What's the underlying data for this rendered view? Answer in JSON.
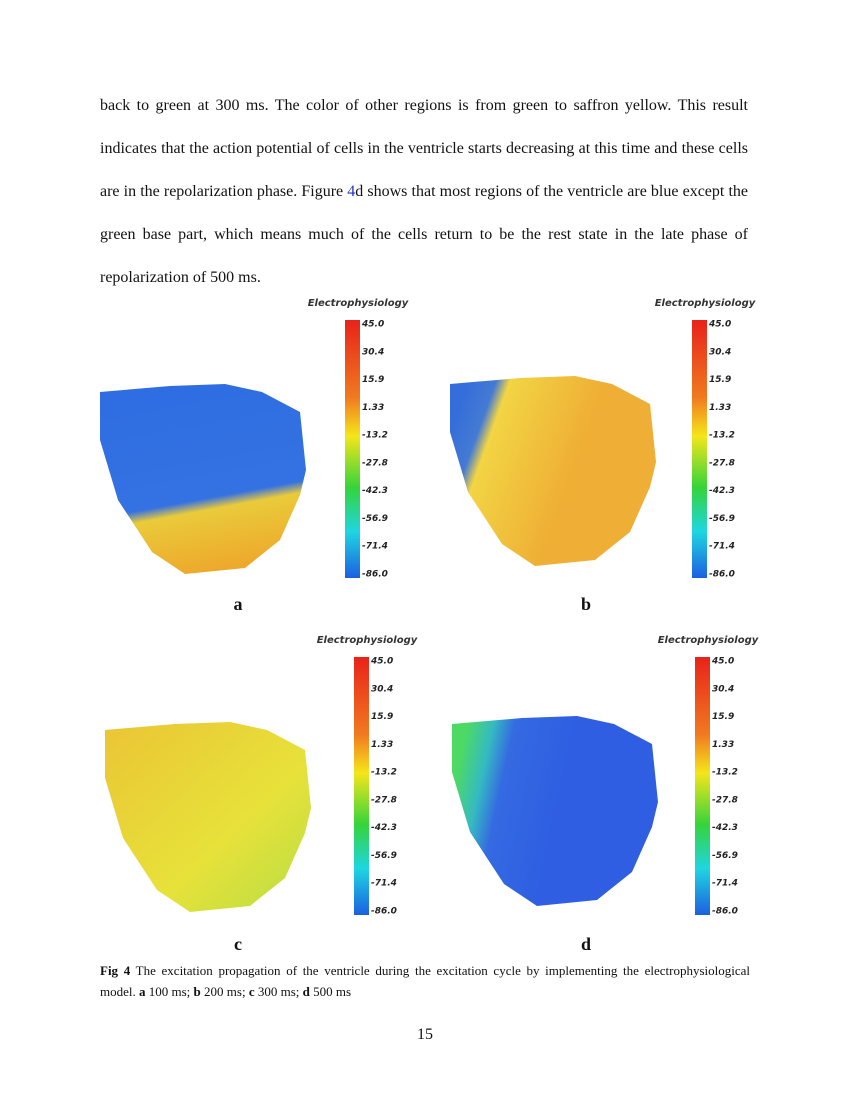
{
  "body": {
    "paragraph": {
      "before": "back to green at 300 ms. The color of other regions is from green to saffron yellow. This result indicates that the action potential of cells in the ventricle starts decreasing at this time and these cells are in the repolarization phase. Figure",
      "ref": "4",
      "after": "d shows that most regions of the ventricle are blue except the green base part, which means much of the cells return to be the rest state in the late phase of repolarization of 500 ms."
    }
  },
  "figure": {
    "colorbar": {
      "title": "Electrophysiology",
      "ticks": [
        "45.0",
        "30.4",
        "15.9",
        "1.33",
        "-13.2",
        "-27.8",
        "-42.3",
        "-56.9",
        "-71.4",
        "-86.0"
      ]
    },
    "panels": [
      {
        "label": "a"
      },
      {
        "label": "b"
      },
      {
        "label": "c"
      },
      {
        "label": "d"
      }
    ],
    "caption": {
      "label": "Fig 4",
      "text": "The excitation propagation of the ventricle during the excitation cycle by implementing the electrophysiological model.",
      "items": [
        {
          "letter": "a",
          "text": "100 ms;"
        },
        {
          "letter": "b",
          "text": "200 ms;"
        },
        {
          "letter": "c",
          "text": "300 ms;"
        },
        {
          "letter": "d",
          "text": "500 ms"
        }
      ]
    }
  },
  "footer": {
    "page_number": "15"
  }
}
